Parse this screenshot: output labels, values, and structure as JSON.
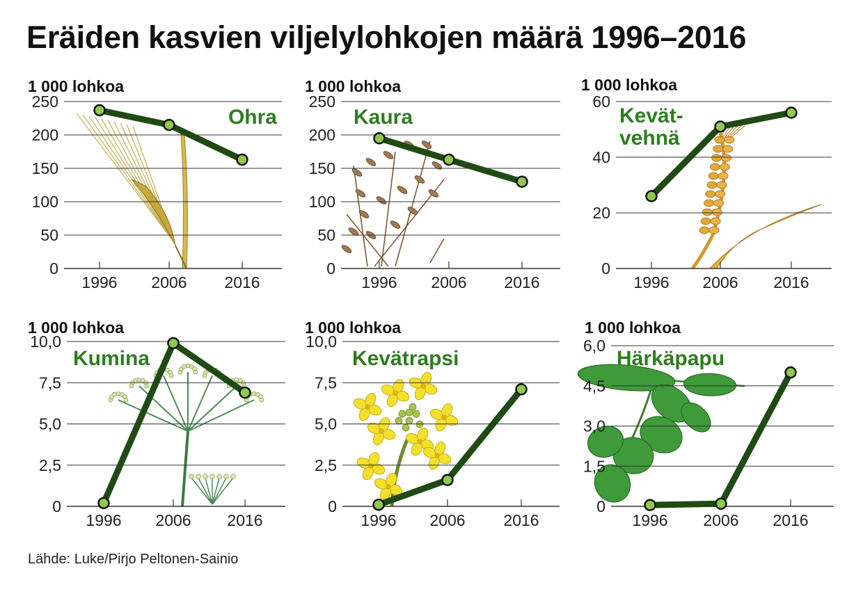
{
  "title": "Eräiden kasvien viljelylohkojen määrä 1996–2016",
  "source": "Lähde: Luke/Pirjo Peltonen-Sainio",
  "colors": {
    "line": "#1f4a14",
    "marker_fill": "#8fca4f",
    "label": "#2e7d1f",
    "grid": "#333333"
  },
  "chart_data": [
    {
      "type": "line",
      "title": "Ohra",
      "unit_label": "1 000 lohkoa",
      "x": [
        "1996",
        "2006",
        "2016"
      ],
      "values": [
        237,
        215,
        163
      ],
      "ylim": [
        0,
        250
      ],
      "yticks": [
        "0",
        "50",
        "100",
        "150",
        "200",
        "250"
      ],
      "illustration": "barley-illustration"
    },
    {
      "type": "line",
      "title": "Kaura",
      "unit_label": "1 000 lohkoa",
      "x": [
        "1996",
        "2006",
        "2016"
      ],
      "values": [
        195,
        163,
        130
      ],
      "ylim": [
        0,
        250
      ],
      "yticks": [
        "0",
        "50",
        "100",
        "150",
        "200",
        "250"
      ],
      "illustration": "oat-illustration"
    },
    {
      "type": "line",
      "title": "Kevät-\nvehnä",
      "unit_label": "1 000 lohkoa",
      "x": [
        "1996",
        "2006",
        "2016"
      ],
      "values": [
        26,
        51,
        56
      ],
      "ylim": [
        0,
        60
      ],
      "yticks": [
        "0",
        "20",
        "40",
        "60"
      ],
      "illustration": "wheat-illustration"
    },
    {
      "type": "line",
      "title": "Kumina",
      "unit_label": "1 000 lohkoa",
      "x": [
        "1996",
        "2006",
        "2016"
      ],
      "values": [
        0.2,
        9.9,
        6.9
      ],
      "ylim": [
        0,
        10
      ],
      "yticks": [
        "0",
        "2,5",
        "5,0",
        "7,5",
        "10,0"
      ],
      "illustration": "caraway-illustration"
    },
    {
      "type": "line",
      "title": "Kevätrapsi",
      "unit_label": "1 000 lohkoa",
      "x": [
        "1996",
        "2006",
        "2016"
      ],
      "values": [
        0.1,
        1.6,
        7.1
      ],
      "ylim": [
        0,
        10
      ],
      "yticks": [
        "0",
        "2,5",
        "5,0",
        "7,5",
        "10,0"
      ],
      "illustration": "rapeseed-illustration"
    },
    {
      "type": "line",
      "title": "Härkäpapu",
      "unit_label": "1 000 lohkoa",
      "x": [
        "1996",
        "2006",
        "2016"
      ],
      "values": [
        0.05,
        0.1,
        5.0
      ],
      "ylim": [
        0,
        6
      ],
      "yticks": [
        "0",
        "1,5",
        "3,0",
        "4,5",
        "6,0"
      ],
      "illustration": "fava-bean-illustration"
    }
  ]
}
